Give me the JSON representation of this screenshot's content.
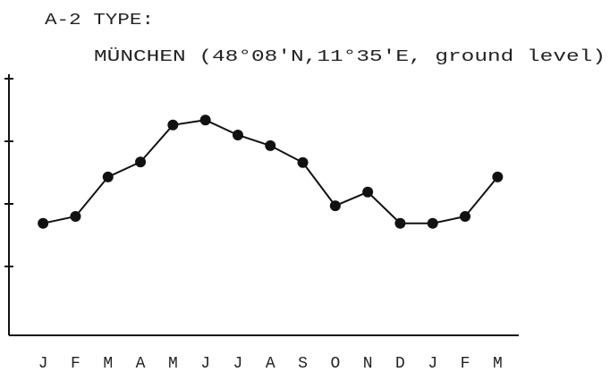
{
  "chart_data": {
    "type": "line",
    "title": "A-2 TYPE:",
    "subtitle": "MÜNCHEN (48°08'N,11°35'E, ground level)",
    "categories": [
      "J",
      "F",
      "M",
      "A",
      "M",
      "J",
      "J",
      "A",
      "S",
      "O",
      "N",
      "D",
      "J",
      "F",
      "M"
    ],
    "values": [
      1.79,
      1.9,
      2.53,
      2.77,
      3.36,
      3.44,
      3.2,
      3.03,
      2.76,
      2.07,
      2.29,
      1.79,
      1.79,
      1.9,
      2.53
    ],
    "color": "#111111",
    "ylim": [
      0,
      4.2
    ],
    "yticks": [
      1.1,
      2.1,
      3.1,
      4.1
    ],
    "grid": false
  }
}
